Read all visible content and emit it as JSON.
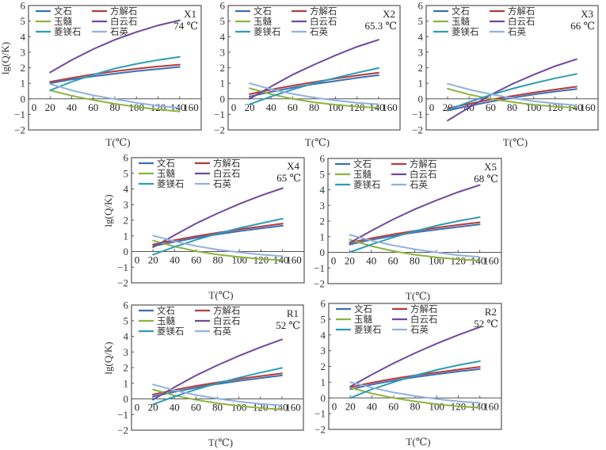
{
  "chart_data": [
    {
      "type": "line",
      "panel": "X1",
      "annotation": [
        "X1",
        "74 ℃"
      ],
      "xlabel": "T(℃)",
      "ylabel": "lg(Q/K)",
      "show_ylabel": true,
      "xticks": [
        "0",
        "20",
        "40",
        "60",
        "80",
        "100",
        "120",
        "140",
        "160"
      ],
      "yticks": [
        "6",
        "5",
        "4",
        "3",
        "2",
        "1",
        "0",
        "−1",
        "−2"
      ],
      "xlim": [
        0,
        160
      ],
      "ylim": [
        -2,
        6
      ],
      "legend_position": "top-left",
      "x": [
        20,
        40,
        60,
        80,
        100,
        120,
        140
      ],
      "series": [
        {
          "name": "文石",
          "color": "#3b6fb6",
          "values": [
            1.0,
            1.25,
            1.45,
            1.62,
            1.78,
            1.92,
            2.05
          ]
        },
        {
          "name": "方解石",
          "color": "#b73a3a",
          "values": [
            1.1,
            1.35,
            1.58,
            1.77,
            1.94,
            2.08,
            2.2
          ]
        },
        {
          "name": "玉髓",
          "color": "#8db33e",
          "values": [
            0.55,
            0.2,
            -0.08,
            -0.32,
            -0.52,
            -0.68,
            -0.82
          ]
        },
        {
          "name": "白云石",
          "color": "#6f4a9a",
          "values": [
            1.7,
            2.5,
            3.2,
            3.8,
            4.3,
            4.72,
            5.05
          ]
        },
        {
          "name": "菱镁石",
          "color": "#2e9db4",
          "values": [
            0.55,
            1.1,
            1.55,
            1.95,
            2.25,
            2.5,
            2.7
          ]
        },
        {
          "name": "石英",
          "color": "#8fb2dd",
          "values": [
            0.95,
            0.55,
            0.22,
            -0.02,
            -0.25,
            -0.45,
            -0.58
          ]
        }
      ]
    },
    {
      "type": "line",
      "panel": "X2",
      "annotation": [
        "X2",
        "65.3 ℃"
      ],
      "xlabel": "T(℃)",
      "ylabel": "lg(Q/K)",
      "show_ylabel": false,
      "xticks": [
        "0",
        "20",
        "40",
        "60",
        "80",
        "100",
        "120",
        "140",
        "160"
      ],
      "yticks": [
        "6",
        "5",
        "4",
        "3",
        "2",
        "1",
        "0",
        "−1",
        "−2"
      ],
      "xlim": [
        0,
        160
      ],
      "ylim": [
        -2,
        6
      ],
      "legend_position": "top-left",
      "x": [
        20,
        40,
        60,
        80,
        100,
        120,
        140
      ],
      "series": [
        {
          "name": "文石",
          "color": "#3b6fb6",
          "values": [
            0.15,
            0.45,
            0.72,
            0.95,
            1.15,
            1.35,
            1.52
          ]
        },
        {
          "name": "方解石",
          "color": "#b73a3a",
          "values": [
            0.3,
            0.6,
            0.85,
            1.08,
            1.3,
            1.5,
            1.68
          ]
        },
        {
          "name": "玉髓",
          "color": "#8db33e",
          "values": [
            0.68,
            0.3,
            0.0,
            -0.22,
            -0.38,
            -0.5,
            -0.58
          ]
        },
        {
          "name": "白云石",
          "color": "#6f4a9a",
          "values": [
            0.0,
            0.8,
            1.55,
            2.2,
            2.8,
            3.35,
            3.8
          ]
        },
        {
          "name": "菱镁石",
          "color": "#2e9db4",
          "values": [
            -0.35,
            0.15,
            0.6,
            1.0,
            1.35,
            1.68,
            1.98
          ]
        },
        {
          "name": "石英",
          "color": "#8fb2dd",
          "values": [
            1.0,
            0.62,
            0.32,
            0.08,
            -0.1,
            -0.25,
            -0.35
          ]
        }
      ]
    },
    {
      "type": "line",
      "panel": "X3",
      "annotation": [
        "X3",
        "66 ℃"
      ],
      "xlabel": "T(℃)",
      "ylabel": "lg(Q/K)",
      "show_ylabel": false,
      "xticks": [
        "0",
        "20",
        "40",
        "60",
        "80",
        "100",
        "120",
        "140",
        "160"
      ],
      "yticks": [
        "6",
        "5",
        "4",
        "3",
        "2",
        "1",
        "0",
        "−1",
        "−2"
      ],
      "xlim": [
        0,
        160
      ],
      "ylim": [
        -2,
        6
      ],
      "legend_position": "top-left",
      "x": [
        20,
        40,
        60,
        80,
        100,
        120,
        140
      ],
      "series": [
        {
          "name": "文石",
          "color": "#3b6fb6",
          "values": [
            -0.75,
            -0.45,
            -0.18,
            0.07,
            0.28,
            0.47,
            0.63
          ]
        },
        {
          "name": "方解石",
          "color": "#b73a3a",
          "values": [
            -0.62,
            -0.32,
            -0.05,
            0.18,
            0.4,
            0.6,
            0.78
          ]
        },
        {
          "name": "玉髓",
          "color": "#8db33e",
          "values": [
            0.65,
            0.28,
            0.0,
            -0.2,
            -0.38,
            -0.5,
            -0.58
          ]
        },
        {
          "name": "白云石",
          "color": "#6f4a9a",
          "values": [
            -1.4,
            -0.55,
            0.25,
            0.95,
            1.55,
            2.1,
            2.55
          ]
        },
        {
          "name": "菱镁石",
          "color": "#2e9db4",
          "values": [
            -0.72,
            -0.2,
            0.25,
            0.65,
            1.0,
            1.32,
            1.6
          ]
        },
        {
          "name": "石英",
          "color": "#8fb2dd",
          "values": [
            0.97,
            0.6,
            0.3,
            0.05,
            -0.15,
            -0.3,
            -0.42
          ]
        }
      ]
    },
    {
      "type": "line",
      "panel": "X4",
      "annotation": [
        "X4",
        "65 ℃"
      ],
      "xlabel": "T(℃)",
      "ylabel": "lg(Q/K)",
      "show_ylabel": true,
      "xticks": [
        "0",
        "20",
        "40",
        "60",
        "80",
        "100",
        "120",
        "140",
        "160"
      ],
      "yticks": [
        "6",
        "5",
        "4",
        "3",
        "2",
        "1",
        "0",
        "−1",
        "−2"
      ],
      "xlim": [
        0,
        160
      ],
      "ylim": [
        -2,
        6
      ],
      "legend_position": "top-left",
      "x": [
        20,
        40,
        60,
        80,
        100,
        120,
        140
      ],
      "series": [
        {
          "name": "文石",
          "color": "#3b6fb6",
          "values": [
            0.35,
            0.62,
            0.88,
            1.1,
            1.3,
            1.48,
            1.65
          ]
        },
        {
          "name": "方解石",
          "color": "#b73a3a",
          "values": [
            0.45,
            0.73,
            0.98,
            1.2,
            1.42,
            1.6,
            1.78
          ]
        },
        {
          "name": "玉髓",
          "color": "#8db33e",
          "values": [
            0.7,
            0.32,
            0.02,
            -0.2,
            -0.35,
            -0.48,
            -0.55
          ]
        },
        {
          "name": "白云石",
          "color": "#6f4a9a",
          "values": [
            0.28,
            1.05,
            1.8,
            2.45,
            3.05,
            3.58,
            4.05
          ]
        },
        {
          "name": "菱镁石",
          "color": "#2e9db4",
          "values": [
            -0.2,
            0.3,
            0.75,
            1.15,
            1.5,
            1.8,
            2.1
          ]
        },
        {
          "name": "石英",
          "color": "#8fb2dd",
          "values": [
            1.02,
            0.65,
            0.35,
            0.12,
            -0.05,
            -0.2,
            -0.3
          ]
        }
      ]
    },
    {
      "type": "line",
      "panel": "X5",
      "annotation": [
        "X5",
        "68 ℃"
      ],
      "xlabel": "T(℃)",
      "ylabel": "lg(Q/K)",
      "show_ylabel": false,
      "xticks": [
        "0",
        "20",
        "40",
        "60",
        "80",
        "100",
        "120",
        "140",
        "160"
      ],
      "yticks": [
        "6",
        "5",
        "4",
        "3",
        "2",
        "1",
        "0",
        "−1",
        "−2"
      ],
      "xlim": [
        0,
        160
      ],
      "ylim": [
        -2,
        6
      ],
      "legend_position": "top-left",
      "x": [
        20,
        40,
        60,
        80,
        100,
        120,
        140
      ],
      "series": [
        {
          "name": "文石",
          "color": "#3b6fb6",
          "values": [
            0.5,
            0.8,
            1.05,
            1.27,
            1.45,
            1.62,
            1.78
          ]
        },
        {
          "name": "方解石",
          "color": "#b73a3a",
          "values": [
            0.62,
            0.9,
            1.15,
            1.37,
            1.57,
            1.75,
            1.92
          ]
        },
        {
          "name": "玉髓",
          "color": "#8db33e",
          "values": [
            0.8,
            0.4,
            0.08,
            -0.15,
            -0.32,
            -0.45,
            -0.52
          ]
        },
        {
          "name": "白云石",
          "color": "#6f4a9a",
          "values": [
            0.6,
            1.38,
            2.1,
            2.75,
            3.32,
            3.85,
            4.3
          ]
        },
        {
          "name": "菱镁石",
          "color": "#2e9db4",
          "values": [
            0.0,
            0.5,
            0.95,
            1.35,
            1.7,
            2.0,
            2.25
          ]
        },
        {
          "name": "石英",
          "color": "#8fb2dd",
          "values": [
            1.12,
            0.75,
            0.45,
            0.2,
            0.0,
            -0.18,
            -0.3
          ]
        }
      ]
    },
    {
      "type": "line",
      "panel": "R1",
      "annotation": [
        "R1",
        "52 ℃"
      ],
      "xlabel": "T(℃)",
      "ylabel": "lg(Q/K)",
      "show_ylabel": true,
      "xticks": [
        "0",
        "20",
        "40",
        "60",
        "80",
        "100",
        "120",
        "140",
        "160"
      ],
      "yticks": [
        "6",
        "5",
        "4",
        "3",
        "2",
        "1",
        "0",
        "−1",
        "−2"
      ],
      "xlim": [
        0,
        160
      ],
      "ylim": [
        -2,
        6
      ],
      "legend_position": "top-left",
      "x": [
        20,
        40,
        60,
        80,
        100,
        120,
        140
      ],
      "series": [
        {
          "name": "文石",
          "color": "#3b6fb6",
          "values": [
            0.15,
            0.45,
            0.72,
            0.95,
            1.15,
            1.33,
            1.5
          ]
        },
        {
          "name": "方解石",
          "color": "#b73a3a",
          "values": [
            0.28,
            0.57,
            0.83,
            1.05,
            1.27,
            1.46,
            1.63
          ]
        },
        {
          "name": "玉髓",
          "color": "#8db33e",
          "values": [
            0.6,
            0.22,
            -0.06,
            -0.28,
            -0.45,
            -0.58,
            -0.68
          ]
        },
        {
          "name": "白云石",
          "color": "#6f4a9a",
          "values": [
            -0.05,
            0.75,
            1.5,
            2.15,
            2.75,
            3.3,
            3.8
          ]
        },
        {
          "name": "菱镁石",
          "color": "#2e9db4",
          "values": [
            -0.35,
            0.15,
            0.6,
            1.0,
            1.35,
            1.68,
            1.98
          ]
        },
        {
          "name": "石英",
          "color": "#8fb2dd",
          "values": [
            0.92,
            0.55,
            0.25,
            0.02,
            -0.17,
            -0.32,
            -0.42
          ]
        }
      ]
    },
    {
      "type": "line",
      "panel": "R2",
      "annotation": [
        "R2",
        "52 ℃"
      ],
      "xlabel": "T(℃)",
      "ylabel": "lg(Q/K)",
      "show_ylabel": false,
      "xticks": [
        "0",
        "20",
        "40",
        "60",
        "80",
        "100",
        "120",
        "140",
        "160"
      ],
      "yticks": [
        "6",
        "5",
        "4",
        "3",
        "2",
        "1",
        "0",
        "−1",
        "−2"
      ],
      "xlim": [
        0,
        160
      ],
      "ylim": [
        -2,
        6
      ],
      "legend_position": "top-left",
      "x": [
        20,
        40,
        60,
        80,
        100,
        120,
        140
      ],
      "series": [
        {
          "name": "文石",
          "color": "#3b6fb6",
          "values": [
            0.55,
            0.85,
            1.1,
            1.32,
            1.5,
            1.68,
            1.83
          ]
        },
        {
          "name": "方解石",
          "color": "#b73a3a",
          "values": [
            0.68,
            0.97,
            1.22,
            1.43,
            1.62,
            1.8,
            1.97
          ]
        },
        {
          "name": "玉髓",
          "color": "#8db33e",
          "values": [
            0.65,
            0.28,
            0.0,
            -0.22,
            -0.4,
            -0.53,
            -0.62
          ]
        },
        {
          "name": "白云石",
          "color": "#6f4a9a",
          "values": [
            0.72,
            1.48,
            2.2,
            2.85,
            3.45,
            4.0,
            4.5
          ]
        },
        {
          "name": "菱镁石",
          "color": "#2e9db4",
          "values": [
            0.0,
            0.55,
            1.0,
            1.42,
            1.78,
            2.08,
            2.33
          ]
        },
        {
          "name": "石英",
          "color": "#8fb2dd",
          "values": [
            1.0,
            0.65,
            0.35,
            0.12,
            -0.07,
            -0.22,
            -0.32
          ]
        }
      ]
    }
  ]
}
